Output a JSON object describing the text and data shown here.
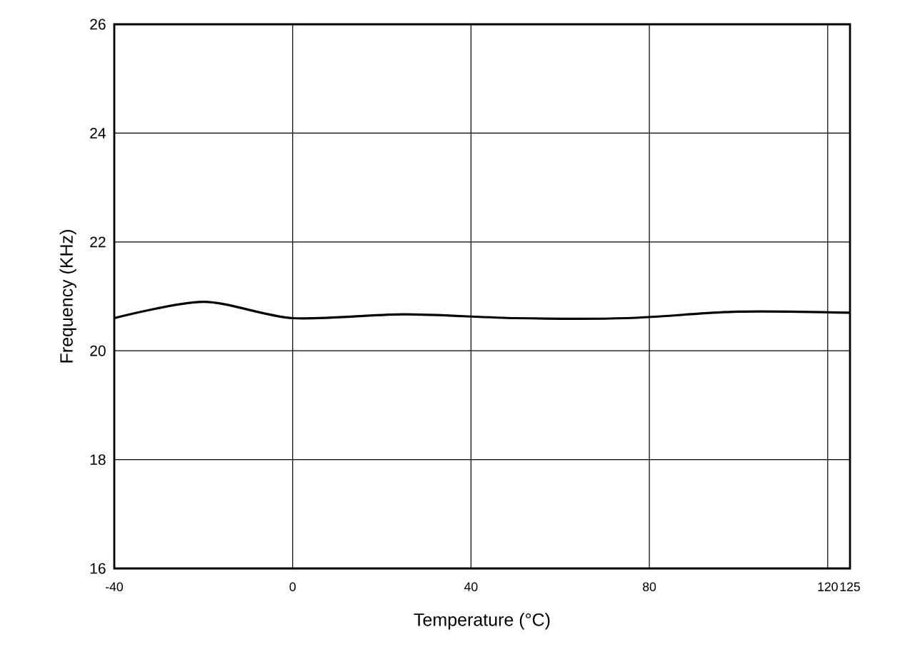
{
  "chart_data": {
    "type": "line",
    "xlabel": "Temperature (°C)",
    "ylabel": "Frequency (KHz)",
    "series": [
      {
        "color": "#000000",
        "x": [
          -40,
          -20,
          0,
          25,
          50,
          75,
          100,
          125
        ],
        "values": [
          20.6,
          20.9,
          20.6,
          20.67,
          20.6,
          20.6,
          20.72,
          20.7
        ]
      }
    ],
    "xlim": [
      -40,
      125
    ],
    "xticks": [
      -40,
      0,
      40,
      80,
      120,
      125
    ],
    "ylim": [
      16,
      26
    ],
    "yticks": [
      16,
      18,
      20,
      22,
      24,
      26
    ],
    "grid": true,
    "marker": "none",
    "line_style": "solid"
  }
}
